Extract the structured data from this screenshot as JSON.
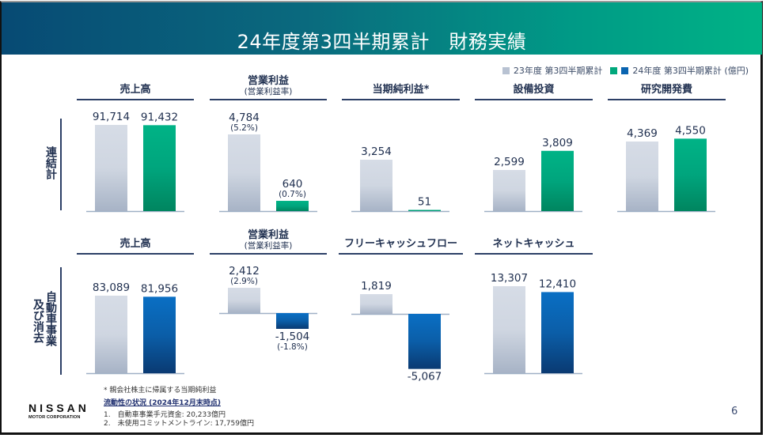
{
  "header": {
    "title": "24年度第3四半期累計　財務実績"
  },
  "legend": {
    "prev_label": "23年度 第3四半期累計",
    "curr_label": "24年度 第3四半期累計 (億円)",
    "prev_color": "#b8c2d2",
    "curr_color_consolidated": "#00a87c",
    "curr_color_auto": "#0a64b0"
  },
  "rows": {
    "consolidated_label": "連結計",
    "auto_label_line1": "自動車事業",
    "auto_label_line2": "及び消去"
  },
  "chart_data": [
    {
      "type": "bar",
      "row": "連結計",
      "title": "売上高",
      "subtitle": "",
      "categories": [
        "23年度 第3四半期累計",
        "24年度 第3四半期累計"
      ],
      "values": [
        91714,
        91432
      ],
      "labels": [
        "91,714",
        "91,432"
      ],
      "sublabels": [
        "",
        ""
      ],
      "unit": "億円"
    },
    {
      "type": "bar",
      "row": "連結計",
      "title": "営業利益",
      "subtitle": "(営業利益率)",
      "categories": [
        "23年度 第3四半期累計",
        "24年度 第3四半期累計"
      ],
      "values": [
        4784,
        640
      ],
      "labels": [
        "4,784",
        "640"
      ],
      "sublabels": [
        "(5.2%)",
        "(0.7%)"
      ],
      "unit": "億円"
    },
    {
      "type": "bar",
      "row": "連結計",
      "title": "当期純利益*",
      "subtitle": "",
      "categories": [
        "23年度 第3四半期累計",
        "24年度 第3四半期累計"
      ],
      "values": [
        3254,
        51
      ],
      "labels": [
        "3,254",
        "51"
      ],
      "sublabels": [
        "",
        ""
      ],
      "unit": "億円"
    },
    {
      "type": "bar",
      "row": "連結計",
      "title": "設備投資",
      "subtitle": "",
      "categories": [
        "23年度 第3四半期累計",
        "24年度 第3四半期累計"
      ],
      "values": [
        2599,
        3809
      ],
      "labels": [
        "2,599",
        "3,809"
      ],
      "sublabels": [
        "",
        ""
      ],
      "unit": "億円"
    },
    {
      "type": "bar",
      "row": "連結計",
      "title": "研究開発費",
      "subtitle": "",
      "categories": [
        "23年度 第3四半期累計",
        "24年度 第3四半期累計"
      ],
      "values": [
        4369,
        4550
      ],
      "labels": [
        "4,369",
        "4,550"
      ],
      "sublabels": [
        "",
        ""
      ],
      "unit": "億円"
    },
    {
      "type": "bar",
      "row": "自動車事業及び消去",
      "title": "売上高",
      "subtitle": "",
      "categories": [
        "23年度 第3四半期累計",
        "24年度 第3四半期累計"
      ],
      "values": [
        83089,
        81956
      ],
      "labels": [
        "83,089",
        "81,956"
      ],
      "sublabels": [
        "",
        ""
      ],
      "unit": "億円"
    },
    {
      "type": "bar",
      "row": "自動車事業及び消去",
      "title": "営業利益",
      "subtitle": "(営業利益率)",
      "categories": [
        "23年度 第3四半期累計",
        "24年度 第3四半期累計"
      ],
      "values": [
        2412,
        -1504
      ],
      "labels": [
        "2,412",
        "-1,504"
      ],
      "sublabels": [
        "(2.9%)",
        "(-1.8%)"
      ],
      "unit": "億円"
    },
    {
      "type": "bar",
      "row": "自動車事業及び消去",
      "title": "フリーキャッシュフロー",
      "subtitle": "",
      "categories": [
        "23年度 第3四半期累計",
        "24年度 第3四半期累計"
      ],
      "values": [
        1819,
        -5067
      ],
      "labels": [
        "1,819",
        "-5,067"
      ],
      "sublabels": [
        "",
        ""
      ],
      "unit": "億円"
    },
    {
      "type": "bar",
      "row": "自動車事業及び消去",
      "title": "ネットキャッシュ",
      "subtitle": "",
      "categories": [
        "23年度 第3四半期累計",
        "24年度 第3四半期累計"
      ],
      "values": [
        13307,
        12410
      ],
      "labels": [
        "13,307",
        "12,410"
      ],
      "sublabels": [
        "",
        ""
      ],
      "unit": "億円"
    }
  ],
  "footer": {
    "footnote": "* 親会社株主に帰属する当期純利益",
    "liquidity_title": "流動性の状況 (2024年12月末時点)",
    "liquidity_items": [
      "1.　自動車事業手元資金: 20,233億円",
      "2.　未使用コミットメントライン: 17,759億円"
    ],
    "logo_main": "NISSAN",
    "logo_sub": "MOTOR CORPORATION",
    "page_number": "6"
  }
}
